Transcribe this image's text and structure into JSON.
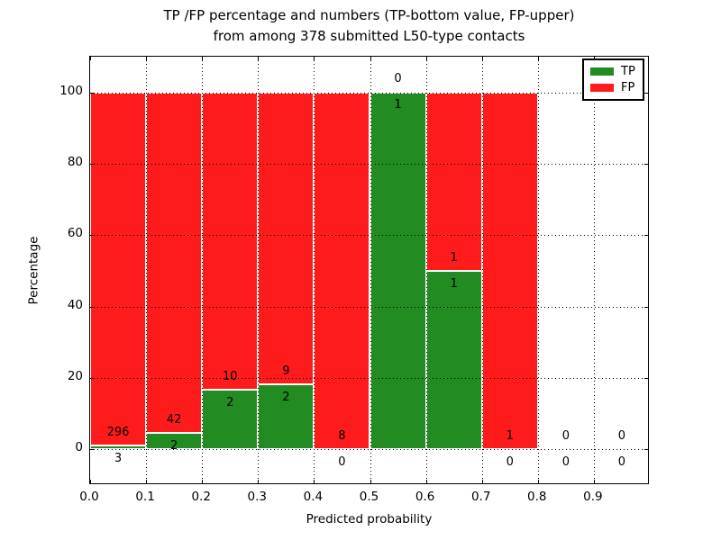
{
  "figure": {
    "title_line1": "TP /FP percentage and numbers (TP-bottom value, FP-upper)",
    "title_line2": "from among 378 submitted L50-type contacts"
  },
  "axes": {
    "xlabel": "Predicted probability",
    "ylabel": "Percentage",
    "x_tick_labels": [
      "0.0",
      "0.1",
      "0.2",
      "0.3",
      "0.4",
      "0.5",
      "0.6",
      "0.7",
      "0.8",
      "0.9"
    ],
    "y_tick_labels": [
      "0",
      "20",
      "40",
      "60",
      "80",
      "100"
    ]
  },
  "legend": {
    "items": [
      {
        "label": "TP",
        "color": "#228b22"
      },
      {
        "label": "FP",
        "color": "#fe1b1b"
      }
    ]
  },
  "colors": {
    "tp": "#228b22",
    "fp": "#fe1b1b",
    "bar_edge": "#ffffff",
    "grid": "#000000",
    "text": "#000000",
    "background": "#ffffff"
  },
  "chart_data": {
    "type": "bar",
    "stacked": true,
    "title": "TP /FP percentage and numbers (TP-bottom value, FP-upper) from among 378 submitted L50-type contacts",
    "xlabel": "Predicted probability",
    "ylabel": "Percentage",
    "xlim": [
      0.0,
      1.0
    ],
    "ylim": [
      -10,
      110
    ],
    "grid": true,
    "grid_style": "dotted",
    "legend_position": "upper right",
    "total_contacts": 378,
    "series": [
      {
        "name": "TP",
        "color": "#228b22"
      },
      {
        "name": "FP",
        "color": "#fe1b1b"
      }
    ],
    "bins": [
      {
        "range": [
          0.0,
          0.1
        ],
        "tp": 3,
        "fp": 296,
        "tp_pct": 1.0,
        "fp_pct": 99.0
      },
      {
        "range": [
          0.1,
          0.2
        ],
        "tp": 2,
        "fp": 42,
        "tp_pct": 4.5,
        "fp_pct": 95.5
      },
      {
        "range": [
          0.2,
          0.3
        ],
        "tp": 2,
        "fp": 10,
        "tp_pct": 16.7,
        "fp_pct": 83.3
      },
      {
        "range": [
          0.3,
          0.4
        ],
        "tp": 2,
        "fp": 9,
        "tp_pct": 18.2,
        "fp_pct": 81.8
      },
      {
        "range": [
          0.4,
          0.5
        ],
        "tp": 0,
        "fp": 8,
        "tp_pct": 0,
        "fp_pct": 100
      },
      {
        "range": [
          0.5,
          0.6
        ],
        "tp": 1,
        "fp": 0,
        "tp_pct": 100,
        "fp_pct": 0
      },
      {
        "range": [
          0.6,
          0.7
        ],
        "tp": 1,
        "fp": 1,
        "tp_pct": 50,
        "fp_pct": 50
      },
      {
        "range": [
          0.7,
          0.8
        ],
        "tp": 0,
        "fp": 1,
        "tp_pct": 0,
        "fp_pct": 100
      },
      {
        "range": [
          0.8,
          0.9
        ],
        "tp": 0,
        "fp": 0,
        "tp_pct": 0,
        "fp_pct": 0
      },
      {
        "range": [
          0.9,
          1.0
        ],
        "tp": 0,
        "fp": 0,
        "tp_pct": 0,
        "fp_pct": 0
      }
    ]
  }
}
